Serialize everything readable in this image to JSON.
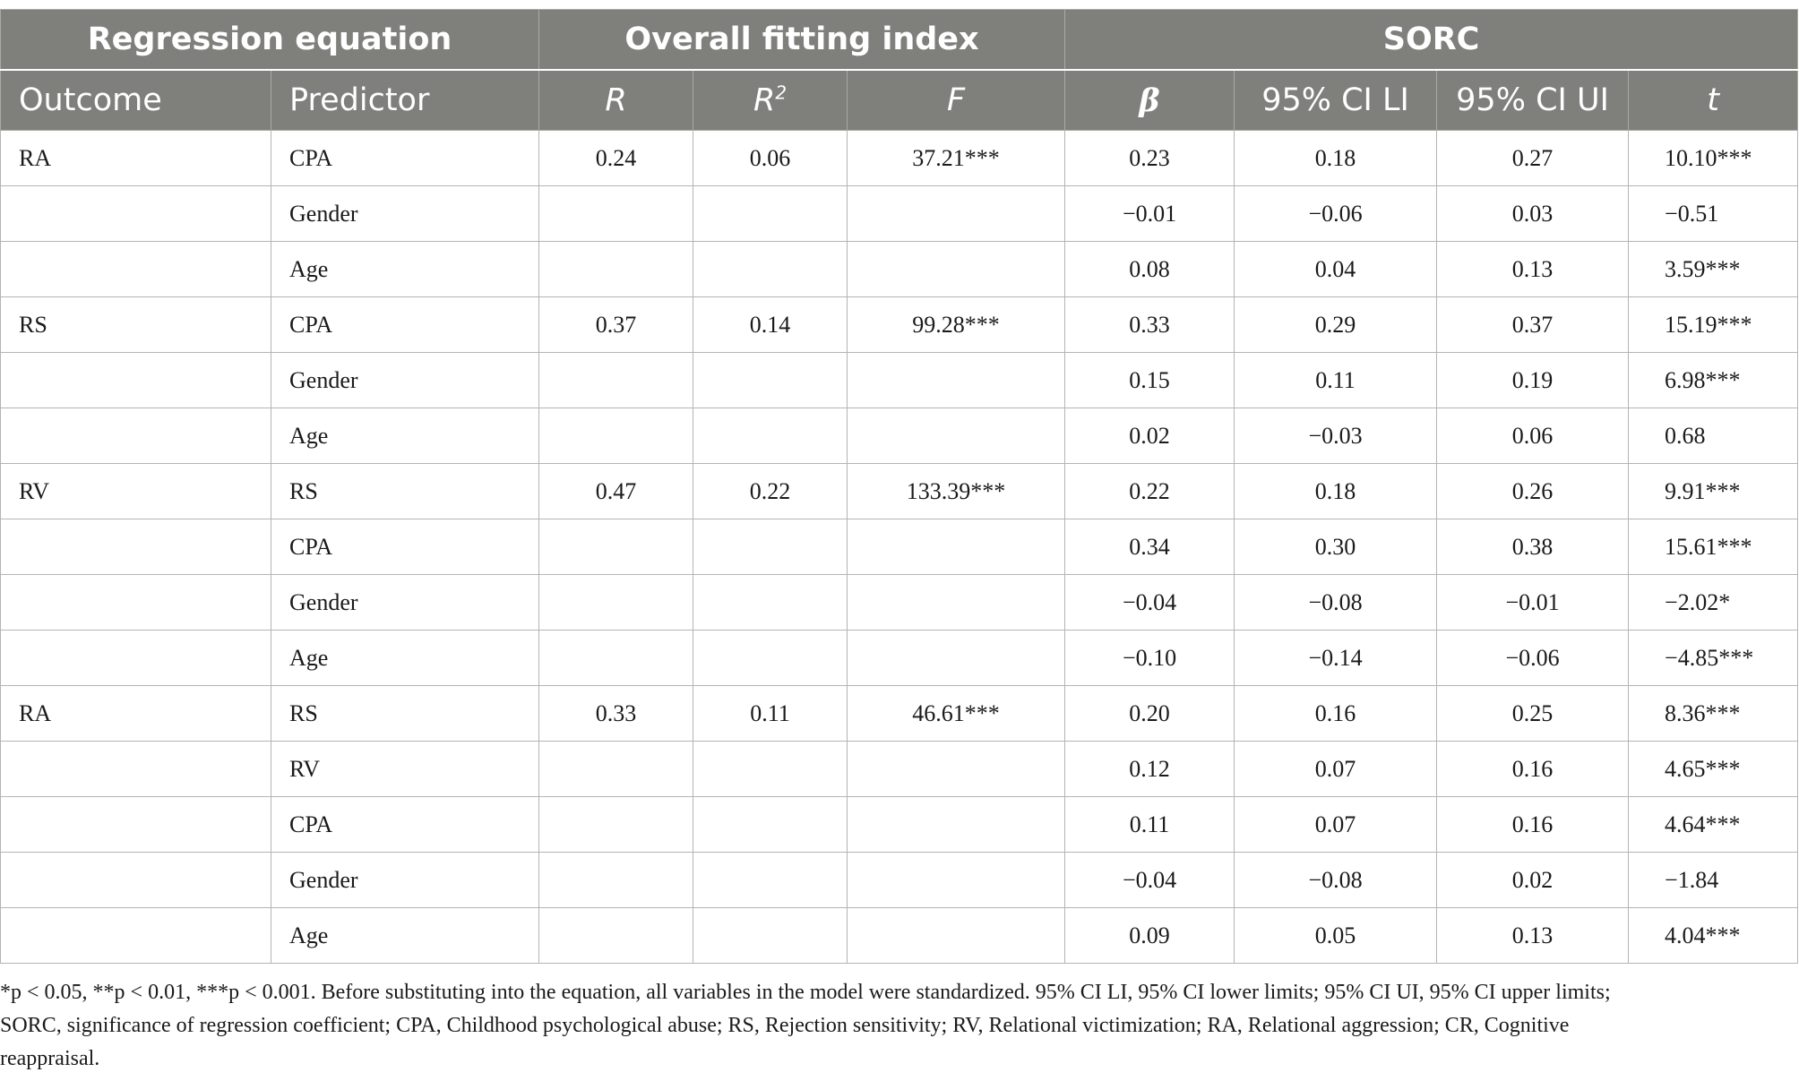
{
  "table": {
    "group_headers": {
      "regression_equation": "Regression equation",
      "overall_fitting_index": "Overall fitting index",
      "sorc": "SORC"
    },
    "column_headers": {
      "outcome": "Outcome",
      "predictor": "Predictor",
      "r": "R",
      "r2_base": "R",
      "r2_sup": "2",
      "f": "F",
      "beta": "β",
      "ci_li": "95% CI LI",
      "ci_ui": "95% CI UI",
      "t": "t"
    },
    "rows": [
      {
        "outcome": "RA",
        "predictor": "CPA",
        "r": "0.24",
        "r2": "0.06",
        "f": "37.21***",
        "beta": "0.23",
        "ci_li": "0.18",
        "ci_ui": "0.27",
        "t": "10.10***"
      },
      {
        "outcome": "",
        "predictor": "Gender",
        "r": "",
        "r2": "",
        "f": "",
        "beta": "−0.01",
        "ci_li": "−0.06",
        "ci_ui": "0.03",
        "t": "−0.51"
      },
      {
        "outcome": "",
        "predictor": "Age",
        "r": "",
        "r2": "",
        "f": "",
        "beta": "0.08",
        "ci_li": "0.04",
        "ci_ui": "0.13",
        "t": "3.59***"
      },
      {
        "outcome": "RS",
        "predictor": "CPA",
        "r": "0.37",
        "r2": "0.14",
        "f": "99.28***",
        "beta": "0.33",
        "ci_li": "0.29",
        "ci_ui": "0.37",
        "t": "15.19***"
      },
      {
        "outcome": "",
        "predictor": "Gender",
        "r": "",
        "r2": "",
        "f": "",
        "beta": "0.15",
        "ci_li": "0.11",
        "ci_ui": "0.19",
        "t": "6.98***"
      },
      {
        "outcome": "",
        "predictor": "Age",
        "r": "",
        "r2": "",
        "f": "",
        "beta": "0.02",
        "ci_li": "−0.03",
        "ci_ui": "0.06",
        "t": "0.68"
      },
      {
        "outcome": "RV",
        "predictor": "RS",
        "r": "0.47",
        "r2": "0.22",
        "f": "133.39***",
        "beta": "0.22",
        "ci_li": "0.18",
        "ci_ui": "0.26",
        "t": "9.91***"
      },
      {
        "outcome": "",
        "predictor": "CPA",
        "r": "",
        "r2": "",
        "f": "",
        "beta": "0.34",
        "ci_li": "0.30",
        "ci_ui": "0.38",
        "t": "15.61***"
      },
      {
        "outcome": "",
        "predictor": "Gender",
        "r": "",
        "r2": "",
        "f": "",
        "beta": "−0.04",
        "ci_li": "−0.08",
        "ci_ui": "−0.01",
        "t": "−2.02*"
      },
      {
        "outcome": "",
        "predictor": "Age",
        "r": "",
        "r2": "",
        "f": "",
        "beta": "−0.10",
        "ci_li": "−0.14",
        "ci_ui": "−0.06",
        "t": "−4.85***"
      },
      {
        "outcome": "RA",
        "predictor": "RS",
        "r": "0.33",
        "r2": "0.11",
        "f": "46.61***",
        "beta": "0.20",
        "ci_li": "0.16",
        "ci_ui": "0.25",
        "t": "8.36***"
      },
      {
        "outcome": "",
        "predictor": "RV",
        "r": "",
        "r2": "",
        "f": "",
        "beta": "0.12",
        "ci_li": "0.07",
        "ci_ui": "0.16",
        "t": "4.65***"
      },
      {
        "outcome": "",
        "predictor": "CPA",
        "r": "",
        "r2": "",
        "f": "",
        "beta": "0.11",
        "ci_li": "0.07",
        "ci_ui": "0.16",
        "t": "4.64***"
      },
      {
        "outcome": "",
        "predictor": "Gender",
        "r": "",
        "r2": "",
        "f": "",
        "beta": "−0.04",
        "ci_li": "−0.08",
        "ci_ui": "0.02",
        "t": "−1.84"
      },
      {
        "outcome": "",
        "predictor": "Age",
        "r": "",
        "r2": "",
        "f": "",
        "beta": "0.09",
        "ci_li": "0.05",
        "ci_ui": "0.13",
        "t": "4.04***"
      }
    ]
  },
  "footnote": {
    "line1": "*p < 0.05, **p < 0.01, ***p < 0.001. Before substituting into the equation, all variables in the model were standardized. 95% CI LI, 95% CI lower limits; 95% CI UI, 95% CI upper limits;",
    "line2": "SORC, significance of regression coefficient; CPA, Childhood psychological abuse; RS, Rejection sensitivity; RV, Relational victimization; RA, Relational aggression; CR, Cognitive",
    "line3": "reappraisal."
  },
  "colors": {
    "header_bg": "#7f7f7c",
    "header_text": "#ffffff",
    "grid_line": "#b4b4b4",
    "body_text": "#1a1a1a"
  }
}
